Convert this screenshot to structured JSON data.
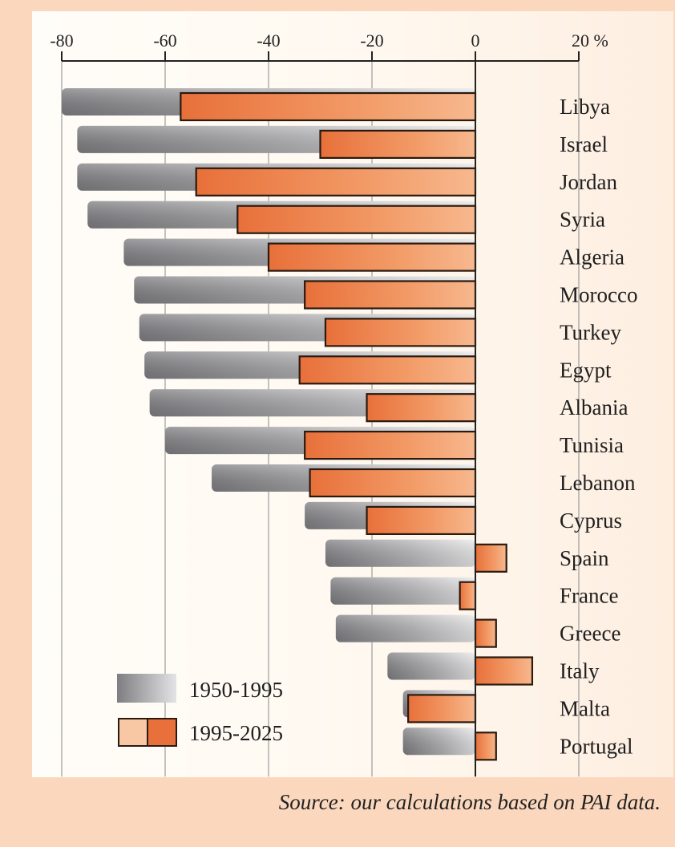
{
  "chart_data": {
    "type": "bar",
    "orientation": "horizontal",
    "title": "",
    "xlabel": "",
    "ylabel": "",
    "xlim": [
      -80,
      20
    ],
    "x_ticks": [
      "-80",
      "-60",
      "-40",
      "-20",
      "0",
      "20 %"
    ],
    "grid": true,
    "legend_position": "bottom-left",
    "categories": [
      "Libya",
      "Israel",
      "Jordan",
      "Syria",
      "Algeria",
      "Morocco",
      "Turkey",
      "Egypt",
      "Albania",
      "Tunisia",
      "Lebanon",
      "Cyprus",
      "Spain",
      "France",
      "Greece",
      "Italy",
      "Malta",
      "Portugal"
    ],
    "series": [
      {
        "name": "1950-1995",
        "color": "#8e8e90",
        "values": [
          -80,
          -77,
          -77,
          -75,
          -68,
          -66,
          -65,
          -64,
          -63,
          -60,
          -51,
          -33,
          -29,
          -28,
          -27,
          -17,
          -14,
          -14
        ]
      },
      {
        "name": "1995-2025",
        "color": "#ee8a4e",
        "values": [
          -57,
          -30,
          -54,
          -46,
          -40,
          -33,
          -29,
          -34,
          -21,
          -33,
          -32,
          -21,
          6,
          -3,
          4,
          11,
          -13,
          4
        ]
      }
    ]
  },
  "source": "Source: our calculations based on PAI data."
}
